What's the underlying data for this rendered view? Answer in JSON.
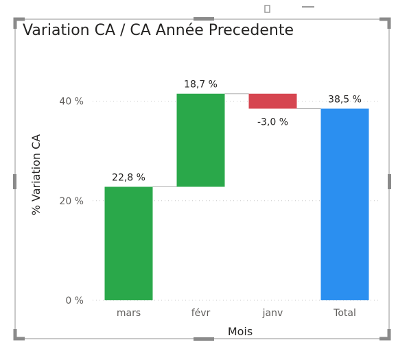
{
  "chart_data": {
    "type": "bar",
    "subtype": "waterfall",
    "title": "Variation CA / CA Année Precedente",
    "xlabel": "Mois",
    "ylabel": "% Variation CA",
    "categories": [
      "mars",
      "févr",
      "janv",
      "Total"
    ],
    "values": [
      22.8,
      18.7,
      -3.0,
      38.5
    ],
    "value_labels": [
      "22,8 %",
      "18,7 %",
      "-3,0 %",
      "38,5 %"
    ],
    "is_total": [
      false,
      false,
      false,
      true
    ],
    "y_ticks": [
      0,
      20,
      40
    ],
    "y_tick_labels": [
      "0 %",
      "20 %",
      "40 %"
    ],
    "ylim": [
      0,
      50
    ],
    "grid": true,
    "colors": {
      "increase": "#2aa84a",
      "decrease": "#d64550",
      "total": "#2b8ff0"
    }
  }
}
